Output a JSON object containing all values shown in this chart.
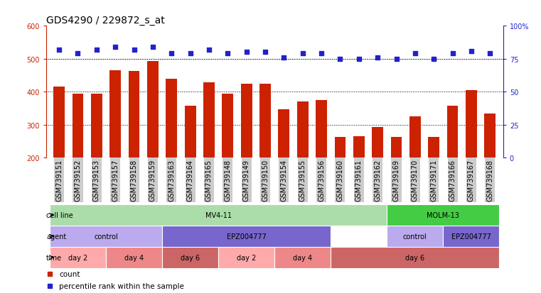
{
  "title": "GDS4290 / 229872_s_at",
  "samples": [
    "GSM739151",
    "GSM739152",
    "GSM739153",
    "GSM739157",
    "GSM739158",
    "GSM739159",
    "GSM739163",
    "GSM739164",
    "GSM739165",
    "GSM739148",
    "GSM739149",
    "GSM739150",
    "GSM739154",
    "GSM739155",
    "GSM739156",
    "GSM739160",
    "GSM739161",
    "GSM739162",
    "GSM739169",
    "GSM739170",
    "GSM739171",
    "GSM739166",
    "GSM739167",
    "GSM739168"
  ],
  "counts": [
    415,
    395,
    395,
    465,
    462,
    492,
    440,
    357,
    428,
    395,
    425,
    425,
    347,
    370,
    375,
    262,
    265,
    292,
    262,
    325,
    262,
    358,
    405,
    333
  ],
  "percentile_ranks": [
    82,
    79,
    82,
    84,
    82,
    84,
    79,
    79,
    82,
    79,
    80,
    80,
    76,
    79,
    79,
    75,
    75,
    76,
    75,
    79,
    75,
    79,
    81,
    79
  ],
  "bar_color": "#cc2200",
  "dot_color": "#2222cc",
  "ylim_left": [
    200,
    600
  ],
  "ylim_right": [
    0,
    100
  ],
  "yticks_left": [
    200,
    300,
    400,
    500,
    600
  ],
  "yticks_right": [
    0,
    25,
    50,
    75,
    100
  ],
  "grid_values": [
    300,
    400,
    500
  ],
  "cell_line_row": {
    "label": "cell line",
    "segments": [
      {
        "text": "MV4-11",
        "start": 0,
        "end": 18,
        "color": "#aaddaa"
      },
      {
        "text": "MOLM-13",
        "start": 18,
        "end": 24,
        "color": "#44cc44"
      }
    ]
  },
  "agent_row": {
    "label": "agent",
    "segments": [
      {
        "text": "control",
        "start": 0,
        "end": 6,
        "color": "#bbaaee"
      },
      {
        "text": "EPZ004777",
        "start": 6,
        "end": 15,
        "color": "#7766cc"
      },
      {
        "text": "control",
        "start": 18,
        "end": 21,
        "color": "#bbaaee"
      },
      {
        "text": "EPZ004777",
        "start": 21,
        "end": 24,
        "color": "#7766cc"
      }
    ]
  },
  "time_row": {
    "label": "time",
    "segments": [
      {
        "text": "day 2",
        "start": 0,
        "end": 3,
        "color": "#ffaaaa"
      },
      {
        "text": "day 4",
        "start": 3,
        "end": 6,
        "color": "#ee8888"
      },
      {
        "text": "day 6",
        "start": 6,
        "end": 9,
        "color": "#cc6666"
      },
      {
        "text": "day 2",
        "start": 9,
        "end": 12,
        "color": "#ffaaaa"
      },
      {
        "text": "day 4",
        "start": 12,
        "end": 15,
        "color": "#ee8888"
      },
      {
        "text": "day 6",
        "start": 15,
        "end": 24,
        "color": "#cc6666"
      }
    ]
  },
  "legend_items": [
    {
      "label": "count",
      "color": "#cc2200"
    },
    {
      "label": "percentile rank within the sample",
      "color": "#2222cc"
    }
  ],
  "background_color": "#ffffff",
  "axis_label_color": "#cc2200",
  "right_axis_label_color": "#2222cc",
  "title_fontsize": 10,
  "tick_fontsize": 7,
  "bar_width": 0.6,
  "xtick_bg_color": "#cccccc"
}
